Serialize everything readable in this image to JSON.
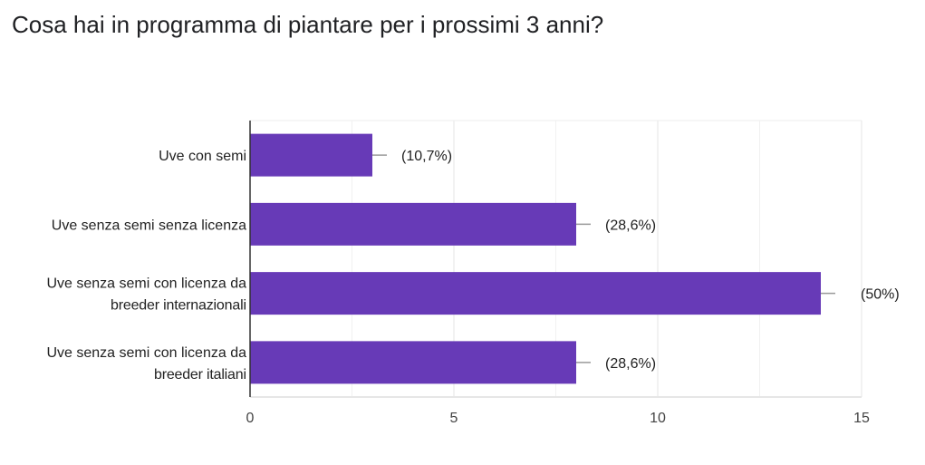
{
  "title": "Cosa hai in programma di piantare per i prossimi 3 anni?",
  "chart_data": {
    "type": "bar",
    "orientation": "horizontal",
    "title": "Cosa hai in programma di piantare per i prossimi 3 anni?",
    "categories": [
      [
        "Uve con semi"
      ],
      [
        "Uve senza semi senza licenza"
      ],
      [
        "Uve senza semi con licenza da",
        "breeder internazionali"
      ],
      [
        "Uve senza semi con licenza da",
        "breeder italiani"
      ]
    ],
    "values": [
      3,
      8,
      14,
      8
    ],
    "data_labels": [
      "(10,7%)",
      "(28,6%)",
      "(50%)",
      "(28,6%)"
    ],
    "xlim": [
      0,
      15
    ],
    "xticks": [
      "0",
      "5",
      "10",
      "15"
    ],
    "grid": true,
    "bar_color": "#673ab7"
  }
}
